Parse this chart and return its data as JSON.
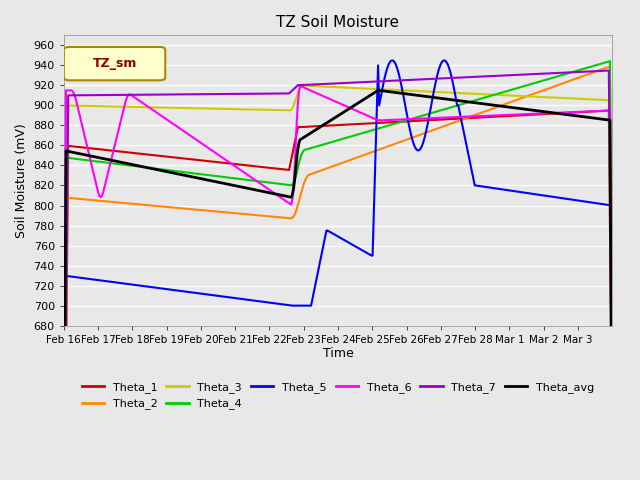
{
  "title": "TZ Soil Moisture",
  "xlabel": "Time",
  "ylabel": "Soil Moisture (mV)",
  "ylim": [
    680,
    970
  ],
  "yticks": [
    680,
    700,
    720,
    740,
    760,
    780,
    800,
    820,
    840,
    860,
    880,
    900,
    920,
    940,
    960
  ],
  "bg_color": "#e8e8e8",
  "plot_bg_color": "#e8e8e8",
  "grid_color": "#ffffff",
  "legend_label": "TZ_sm",
  "legend_box_color": "#ffffcc",
  "legend_box_border": "#aa8800",
  "series_colors": {
    "Theta_1": "#cc0000",
    "Theta_2": "#ff8800",
    "Theta_3": "#cccc00",
    "Theta_4": "#00cc00",
    "Theta_5": "#0000ff",
    "Theta_6": "#ff00ff",
    "Theta_7": "#9900cc",
    "Theta_avg": "#000000"
  },
  "n_points": 500,
  "date_labels": [
    "Feb 16",
    "Feb 17",
    "Feb 18",
    "Feb 19",
    "Feb 20",
    "Feb 21",
    "Feb 22",
    "Feb 23",
    "Feb 24",
    "Feb 25",
    "Feb 26",
    "Feb 27",
    "Feb 28",
    "Mar 1",
    "Mar 2",
    "Mar 3"
  ]
}
